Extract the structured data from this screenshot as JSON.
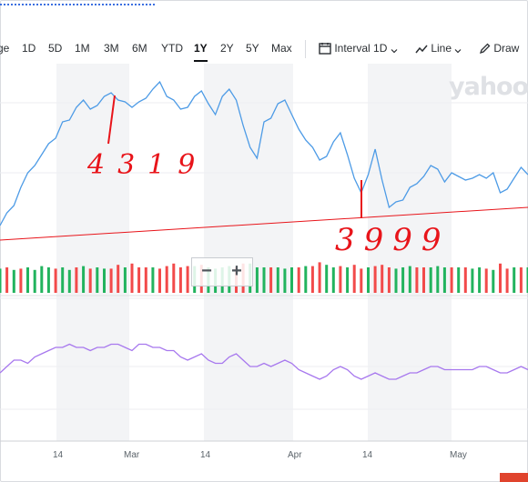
{
  "toolbar": {
    "ranges": [
      "ge",
      "1D",
      "5D",
      "1M",
      "3M",
      "6M",
      "YTD",
      "1Y",
      "2Y",
      "5Y",
      "Max"
    ],
    "active_range": "1Y",
    "interval_label": "Interval",
    "interval_value": "1D",
    "chart_type": "Line",
    "draw_label": "Draw"
  },
  "watermark": "yahoo",
  "zoom": {
    "minus": "−",
    "plus": "+"
  },
  "x_axis": {
    "labels": [
      "14",
      "Mar",
      "14",
      "Apr",
      "14",
      "May"
    ]
  },
  "annotations": {
    "high": "4319",
    "low": "3999"
  },
  "colors": {
    "price_line": "#4d9be6",
    "trend_line": "#e8141a",
    "volume_up": "#22b35e",
    "volume_down": "#f24a4a",
    "indicator": "#a778ee",
    "annotation": "#e8141a"
  },
  "chart_data": {
    "type": "line",
    "price_series": [
      {
        "i": 0,
        "v": 3955
      },
      {
        "i": 1,
        "v": 3990
      },
      {
        "i": 2,
        "v": 4010
      },
      {
        "i": 3,
        "v": 4060
      },
      {
        "i": 4,
        "v": 4100
      },
      {
        "i": 5,
        "v": 4120
      },
      {
        "i": 6,
        "v": 4150
      },
      {
        "i": 7,
        "v": 4180
      },
      {
        "i": 8,
        "v": 4195
      },
      {
        "i": 9,
        "v": 4240
      },
      {
        "i": 10,
        "v": 4245
      },
      {
        "i": 11,
        "v": 4280
      },
      {
        "i": 12,
        "v": 4300
      },
      {
        "i": 13,
        "v": 4275
      },
      {
        "i": 14,
        "v": 4285
      },
      {
        "i": 15,
        "v": 4310
      },
      {
        "i": 16,
        "v": 4320
      },
      {
        "i": 17,
        "v": 4300
      },
      {
        "i": 18,
        "v": 4295
      },
      {
        "i": 19,
        "v": 4280
      },
      {
        "i": 20,
        "v": 4295
      },
      {
        "i": 21,
        "v": 4305
      },
      {
        "i": 22,
        "v": 4330
      },
      {
        "i": 23,
        "v": 4350
      },
      {
        "i": 24,
        "v": 4310
      },
      {
        "i": 25,
        "v": 4300
      },
      {
        "i": 26,
        "v": 4275
      },
      {
        "i": 27,
        "v": 4280
      },
      {
        "i": 28,
        "v": 4310
      },
      {
        "i": 29,
        "v": 4325
      },
      {
        "i": 30,
        "v": 4290
      },
      {
        "i": 31,
        "v": 4260
      },
      {
        "i": 32,
        "v": 4310
      },
      {
        "i": 33,
        "v": 4330
      },
      {
        "i": 34,
        "v": 4300
      },
      {
        "i": 35,
        "v": 4230
      },
      {
        "i": 36,
        "v": 4170
      },
      {
        "i": 37,
        "v": 4140
      },
      {
        "i": 38,
        "v": 4240
      },
      {
        "i": 39,
        "v": 4250
      },
      {
        "i": 40,
        "v": 4290
      },
      {
        "i": 41,
        "v": 4300
      },
      {
        "i": 42,
        "v": 4260
      },
      {
        "i": 43,
        "v": 4220
      },
      {
        "i": 44,
        "v": 4190
      },
      {
        "i": 45,
        "v": 4170
      },
      {
        "i": 46,
        "v": 4135
      },
      {
        "i": 47,
        "v": 4145
      },
      {
        "i": 48,
        "v": 4185
      },
      {
        "i": 49,
        "v": 4210
      },
      {
        "i": 50,
        "v": 4150
      },
      {
        "i": 51,
        "v": 4085
      },
      {
        "i": 52,
        "v": 4045
      },
      {
        "i": 53,
        "v": 4095
      },
      {
        "i": 54,
        "v": 4165
      },
      {
        "i": 55,
        "v": 4080
      },
      {
        "i": 56,
        "v": 4005
      },
      {
        "i": 57,
        "v": 4020
      },
      {
        "i": 58,
        "v": 4025
      },
      {
        "i": 59,
        "v": 4060
      },
      {
        "i": 60,
        "v": 4070
      },
      {
        "i": 61,
        "v": 4090
      },
      {
        "i": 62,
        "v": 4120
      },
      {
        "i": 63,
        "v": 4110
      },
      {
        "i": 64,
        "v": 4075
      },
      {
        "i": 65,
        "v": 4100
      },
      {
        "i": 66,
        "v": 4090
      },
      {
        "i": 67,
        "v": 4080
      },
      {
        "i": 68,
        "v": 4085
      },
      {
        "i": 69,
        "v": 4095
      },
      {
        "i": 70,
        "v": 4085
      },
      {
        "i": 71,
        "v": 4100
      },
      {
        "i": 72,
        "v": 4045
      },
      {
        "i": 73,
        "v": 4055
      },
      {
        "i": 74,
        "v": 4085
      },
      {
        "i": 75,
        "v": 4115
      },
      {
        "i": 76,
        "v": 4095
      }
    ],
    "trend_line": {
      "from": 3915,
      "to": 4005
    },
    "volume": [
      {
        "i": 0,
        "v": 1.9,
        "up": true
      },
      {
        "i": 1,
        "v": 2.0,
        "up": false
      },
      {
        "i": 2,
        "v": 1.8,
        "up": true
      },
      {
        "i": 3,
        "v": 1.9,
        "up": false
      },
      {
        "i": 4,
        "v": 2.0,
        "up": true
      },
      {
        "i": 5,
        "v": 1.8,
        "up": true
      },
      {
        "i": 6,
        "v": 2.1,
        "up": true
      },
      {
        "i": 7,
        "v": 2.0,
        "up": true
      },
      {
        "i": 8,
        "v": 1.9,
        "up": false
      },
      {
        "i": 9,
        "v": 2.0,
        "up": true
      },
      {
        "i": 10,
        "v": 1.8,
        "up": true
      },
      {
        "i": 11,
        "v": 2.0,
        "up": false
      },
      {
        "i": 12,
        "v": 2.1,
        "up": true
      },
      {
        "i": 13,
        "v": 1.9,
        "up": false
      },
      {
        "i": 14,
        "v": 2.0,
        "up": true
      },
      {
        "i": 15,
        "v": 1.9,
        "up": true
      },
      {
        "i": 16,
        "v": 1.9,
        "up": false
      },
      {
        "i": 17,
        "v": 2.2,
        "up": false
      },
      {
        "i": 18,
        "v": 2.0,
        "up": true
      },
      {
        "i": 19,
        "v": 2.3,
        "up": false
      },
      {
        "i": 20,
        "v": 2.0,
        "up": false
      },
      {
        "i": 21,
        "v": 2.0,
        "up": false
      },
      {
        "i": 22,
        "v": 2.0,
        "up": true
      },
      {
        "i": 23,
        "v": 1.9,
        "up": false
      },
      {
        "i": 24,
        "v": 2.1,
        "up": false
      },
      {
        "i": 25,
        "v": 2.3,
        "up": false
      },
      {
        "i": 26,
        "v": 2.0,
        "up": false
      },
      {
        "i": 27,
        "v": 2.1,
        "up": false
      },
      {
        "i": 28,
        "v": 2.1,
        "up": true
      },
      {
        "i": 29,
        "v": 2.2,
        "up": false
      },
      {
        "i": 30,
        "v": 2.0,
        "up": true
      },
      {
        "i": 31,
        "v": 1.9,
        "up": true
      },
      {
        "i": 32,
        "v": 2.0,
        "up": true
      },
      {
        "i": 33,
        "v": 2.1,
        "up": true
      },
      {
        "i": 34,
        "v": 2.0,
        "up": false
      },
      {
        "i": 35,
        "v": 2.3,
        "up": false
      },
      {
        "i": 36,
        "v": 2.3,
        "up": true
      },
      {
        "i": 37,
        "v": 2.0,
        "up": true
      },
      {
        "i": 38,
        "v": 2.0,
        "up": true
      },
      {
        "i": 39,
        "v": 2.0,
        "up": false
      },
      {
        "i": 40,
        "v": 2.0,
        "up": true
      },
      {
        "i": 41,
        "v": 1.9,
        "up": true
      },
      {
        "i": 42,
        "v": 2.0,
        "up": true
      },
      {
        "i": 43,
        "v": 2.0,
        "up": false
      },
      {
        "i": 44,
        "v": 2.1,
        "up": true
      },
      {
        "i": 45,
        "v": 2.1,
        "up": false
      },
      {
        "i": 46,
        "v": 2.4,
        "up": false
      },
      {
        "i": 47,
        "v": 2.2,
        "up": true
      },
      {
        "i": 48,
        "v": 2.0,
        "up": true
      },
      {
        "i": 49,
        "v": 2.1,
        "up": false
      },
      {
        "i": 50,
        "v": 2.0,
        "up": true
      },
      {
        "i": 51,
        "v": 2.2,
        "up": false
      },
      {
        "i": 52,
        "v": 1.9,
        "up": false
      },
      {
        "i": 53,
        "v": 2.0,
        "up": true
      },
      {
        "i": 54,
        "v": 2.1,
        "up": false
      },
      {
        "i": 55,
        "v": 2.2,
        "up": false
      },
      {
        "i": 56,
        "v": 2.0,
        "up": false
      },
      {
        "i": 57,
        "v": 1.9,
        "up": true
      },
      {
        "i": 58,
        "v": 2.0,
        "up": true
      },
      {
        "i": 59,
        "v": 2.1,
        "up": true
      },
      {
        "i": 60,
        "v": 2.0,
        "up": false
      },
      {
        "i": 61,
        "v": 2.0,
        "up": false
      },
      {
        "i": 62,
        "v": 2.0,
        "up": true
      },
      {
        "i": 63,
        "v": 2.1,
        "up": true
      },
      {
        "i": 64,
        "v": 2.0,
        "up": true
      },
      {
        "i": 65,
        "v": 2.0,
        "up": false
      },
      {
        "i": 66,
        "v": 2.0,
        "up": true
      },
      {
        "i": 67,
        "v": 2.0,
        "up": false
      },
      {
        "i": 68,
        "v": 1.9,
        "up": true
      },
      {
        "i": 69,
        "v": 2.0,
        "up": true
      },
      {
        "i": 70,
        "v": 1.9,
        "up": false
      },
      {
        "i": 71,
        "v": 1.8,
        "up": true
      },
      {
        "i": 72,
        "v": 2.3,
        "up": false
      },
      {
        "i": 73,
        "v": 1.9,
        "up": false
      },
      {
        "i": 74,
        "v": 2.0,
        "up": true
      },
      {
        "i": 75,
        "v": 2.0,
        "up": false
      },
      {
        "i": 76,
        "v": 2.0,
        "up": true
      }
    ],
    "indicator_series": [
      {
        "i": 0,
        "v": 50
      },
      {
        "i": 1,
        "v": 52
      },
      {
        "i": 2,
        "v": 54
      },
      {
        "i": 3,
        "v": 54
      },
      {
        "i": 4,
        "v": 53
      },
      {
        "i": 5,
        "v": 55
      },
      {
        "i": 6,
        "v": 56
      },
      {
        "i": 7,
        "v": 57
      },
      {
        "i": 8,
        "v": 58
      },
      {
        "i": 9,
        "v": 58
      },
      {
        "i": 10,
        "v": 59
      },
      {
        "i": 11,
        "v": 58
      },
      {
        "i": 12,
        "v": 58
      },
      {
        "i": 13,
        "v": 57
      },
      {
        "i": 14,
        "v": 58
      },
      {
        "i": 15,
        "v": 58
      },
      {
        "i": 16,
        "v": 59
      },
      {
        "i": 17,
        "v": 59
      },
      {
        "i": 18,
        "v": 58
      },
      {
        "i": 19,
        "v": 57
      },
      {
        "i": 20,
        "v": 59
      },
      {
        "i": 21,
        "v": 59
      },
      {
        "i": 22,
        "v": 58
      },
      {
        "i": 23,
        "v": 58
      },
      {
        "i": 24,
        "v": 57
      },
      {
        "i": 25,
        "v": 57
      },
      {
        "i": 26,
        "v": 55
      },
      {
        "i": 27,
        "v": 54
      },
      {
        "i": 28,
        "v": 55
      },
      {
        "i": 29,
        "v": 56
      },
      {
        "i": 30,
        "v": 54
      },
      {
        "i": 31,
        "v": 53
      },
      {
        "i": 32,
        "v": 53
      },
      {
        "i": 33,
        "v": 55
      },
      {
        "i": 34,
        "v": 56
      },
      {
        "i": 35,
        "v": 54
      },
      {
        "i": 36,
        "v": 52
      },
      {
        "i": 37,
        "v": 52
      },
      {
        "i": 38,
        "v": 53
      },
      {
        "i": 39,
        "v": 52
      },
      {
        "i": 40,
        "v": 53
      },
      {
        "i": 41,
        "v": 54
      },
      {
        "i": 42,
        "v": 53
      },
      {
        "i": 43,
        "v": 51
      },
      {
        "i": 44,
        "v": 50
      },
      {
        "i": 45,
        "v": 49
      },
      {
        "i": 46,
        "v": 48
      },
      {
        "i": 47,
        "v": 49
      },
      {
        "i": 48,
        "v": 51
      },
      {
        "i": 49,
        "v": 52
      },
      {
        "i": 50,
        "v": 51
      },
      {
        "i": 51,
        "v": 49
      },
      {
        "i": 52,
        "v": 48
      },
      {
        "i": 53,
        "v": 49
      },
      {
        "i": 54,
        "v": 50
      },
      {
        "i": 55,
        "v": 49
      },
      {
        "i": 56,
        "v": 48
      },
      {
        "i": 57,
        "v": 48
      },
      {
        "i": 58,
        "v": 49
      },
      {
        "i": 59,
        "v": 50
      },
      {
        "i": 60,
        "v": 50
      },
      {
        "i": 61,
        "v": 51
      },
      {
        "i": 62,
        "v": 52
      },
      {
        "i": 63,
        "v": 52
      },
      {
        "i": 64,
        "v": 51
      },
      {
        "i": 65,
        "v": 51
      },
      {
        "i": 66,
        "v": 51
      },
      {
        "i": 67,
        "v": 51
      },
      {
        "i": 68,
        "v": 51
      },
      {
        "i": 69,
        "v": 52
      },
      {
        "i": 70,
        "v": 52
      },
      {
        "i": 71,
        "v": 51
      },
      {
        "i": 72,
        "v": 50
      },
      {
        "i": 73,
        "v": 50
      },
      {
        "i": 74,
        "v": 51
      },
      {
        "i": 75,
        "v": 52
      },
      {
        "i": 76,
        "v": 51
      }
    ],
    "title": "",
    "xlabel": "",
    "ylabel": "",
    "grid": true
  }
}
